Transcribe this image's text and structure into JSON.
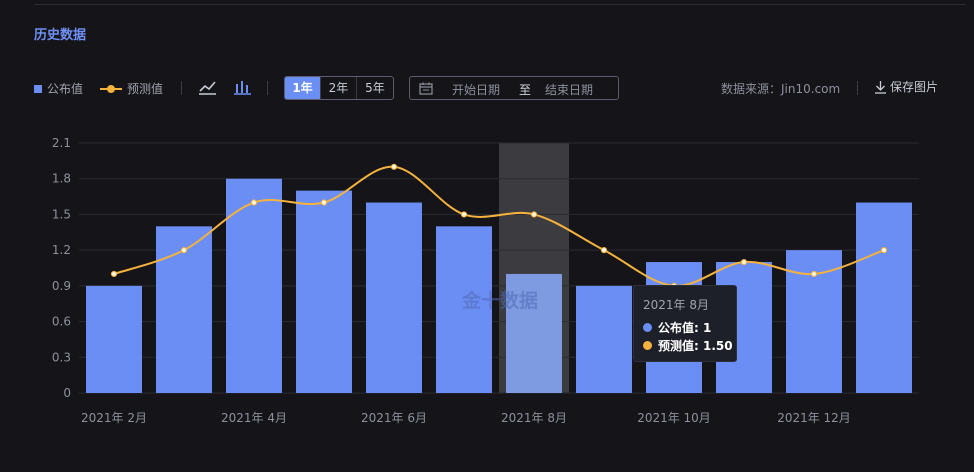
{
  "header": {
    "title": "历史数据"
  },
  "legend": {
    "published_label": "公布值",
    "forecast_label": "预测值",
    "published_color": "#6b8ef5",
    "forecast_color": "#f5b23d"
  },
  "toolbar": {
    "line_chart_icon": "line-chart-icon",
    "bar_chart_icon": "bar-chart-icon",
    "ranges": [
      "1年",
      "2年",
      "5年"
    ],
    "active_range": "1年",
    "date_start_placeholder": "开始日期",
    "date_separator": "至",
    "date_end_placeholder": "结束日期",
    "source": "数据来源：Jin10.com",
    "save_label": "保存图片"
  },
  "watermark": "金十数据",
  "tooltip": {
    "title": "2021年 8月",
    "published_text": "公布值: 1",
    "forecast_text": "预测值: 1.50"
  },
  "chart_data": {
    "type": "bar",
    "categories": [
      "2021年 2月",
      "2021年 3月",
      "2021年 4月",
      "2021年 5月",
      "2021年 6月",
      "2021年 7月",
      "2021年 8月",
      "2021年 9月",
      "2021年 10月",
      "2021年 11月",
      "2021年 12月",
      "2022年 1月"
    ],
    "x_tick_labels": [
      "2021年 2月",
      "",
      "2021年 4月",
      "",
      "2021年 6月",
      "",
      "2021年 8月",
      "",
      "2021年 10月",
      "",
      "2021年 12月",
      ""
    ],
    "series": [
      {
        "name": "公布值",
        "type": "bar",
        "color": "#6b8ef5",
        "values": [
          0.9,
          1.4,
          1.8,
          1.7,
          1.6,
          1.4,
          1.0,
          0.9,
          1.1,
          1.1,
          1.2,
          1.6
        ]
      },
      {
        "name": "预测值",
        "type": "line",
        "color": "#f5b23d",
        "values": [
          1.0,
          1.2,
          1.6,
          1.6,
          1.9,
          1.5,
          1.5,
          1.2,
          0.9,
          1.1,
          1.0,
          1.2
        ]
      }
    ],
    "ylim": [
      0,
      2.1
    ],
    "yticks": [
      "0",
      "0.3",
      "0.6",
      "0.9",
      "1.2",
      "1.5",
      "1.8",
      "2.1"
    ],
    "highlighted_category": "2021年 8月",
    "grid": true
  }
}
